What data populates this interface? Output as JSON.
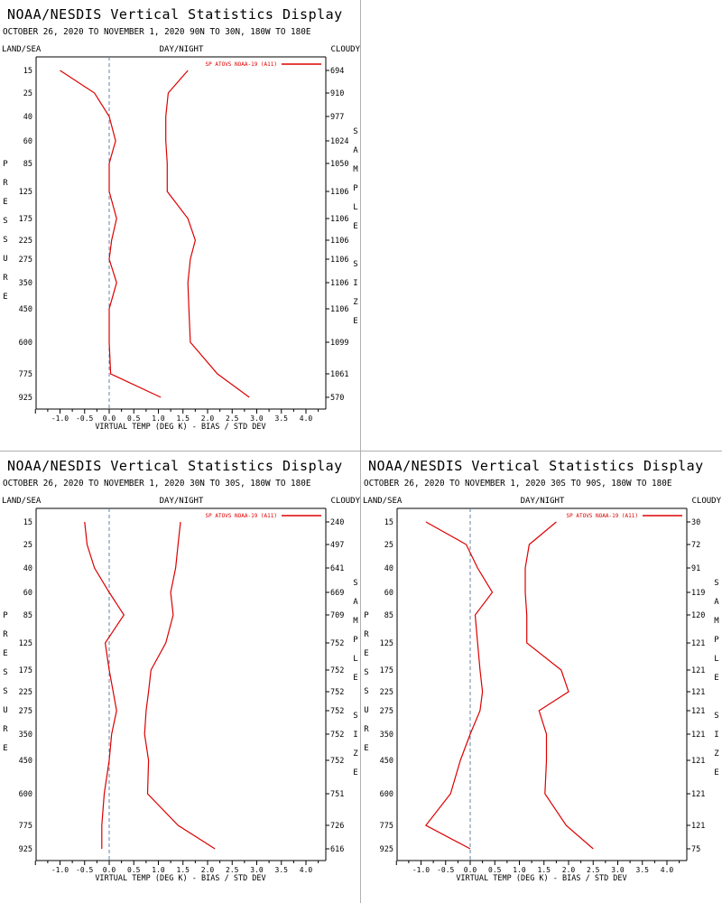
{
  "colors": {
    "series": "#dd0000",
    "zero_line": "#6680aa",
    "axis": "#000000",
    "background": "#ffffff"
  },
  "chart_data": [
    {
      "type": "line",
      "title": "NOAA/NESDIS Vertical Statistics Display",
      "subtitle": "OCTOBER 26, 2020 TO NOVEMBER 1, 2020 90N TO 30N, 180W TO 180E",
      "header_left": "LAND/SEA",
      "header_center": "DAY/NIGHT",
      "header_right": "CLOUDY",
      "xlabel": "VIRTUAL TEMP (DEG K) - BIAS / STD DEV",
      "ylabel": "PRESSURE",
      "y2label": "SAMPLE SIZE",
      "legend": "SP ATOVS NOAA-19 (A11)",
      "legend_position": "top-right",
      "x_ticks": [
        "-1.0",
        "-0.5",
        "0.0",
        "0.5",
        "1.0",
        "1.5",
        "2.0",
        "2.5",
        "3.0",
        "3.5",
        "4.0"
      ],
      "xlim": [
        -1.5,
        4.4
      ],
      "pressure_levels": [
        "15",
        "25",
        "40",
        "60",
        "85",
        "125",
        "175",
        "225",
        "275",
        "350",
        "450",
        "600",
        "775",
        "925"
      ],
      "sample_size": [
        "694",
        "910",
        "977",
        "1024",
        "1050",
        "1106",
        "1106",
        "1106",
        "1106",
        "1106",
        "1106",
        "1099",
        "1061",
        "570"
      ],
      "series": [
        {
          "name": "BIAS",
          "values": [
            -1.0,
            -0.3,
            0.0,
            0.13,
            0.0,
            0.0,
            0.15,
            0.05,
            0.0,
            0.15,
            0.0,
            0.0,
            0.03,
            1.05
          ]
        },
        {
          "name": "STD DEV",
          "values": [
            1.6,
            1.2,
            1.15,
            1.15,
            1.18,
            1.18,
            1.6,
            1.75,
            1.65,
            1.6,
            1.62,
            1.65,
            2.2,
            2.85
          ]
        }
      ],
      "grid": false
    },
    {
      "type": "line",
      "title": "NOAA/NESDIS Vertical Statistics Display",
      "subtitle": "OCTOBER 26, 2020 TO NOVEMBER 1, 2020 30N TO 30S, 180W TO 180E",
      "header_left": "LAND/SEA",
      "header_center": "DAY/NIGHT",
      "header_right": "CLOUDY",
      "xlabel": "VIRTUAL TEMP (DEG K) - BIAS / STD DEV",
      "ylabel": "PRESSURE",
      "y2label": "SAMPLE SIZE",
      "legend": "SP ATOVS NOAA-19 (A11)",
      "legend_position": "top-right",
      "x_ticks": [
        "-1.0",
        "-0.5",
        "0.0",
        "0.5",
        "1.0",
        "1.5",
        "2.0",
        "2.5",
        "3.0",
        "3.5",
        "4.0"
      ],
      "xlim": [
        -1.5,
        4.4
      ],
      "pressure_levels": [
        "15",
        "25",
        "40",
        "60",
        "85",
        "125",
        "175",
        "225",
        "275",
        "350",
        "450",
        "600",
        "775",
        "925"
      ],
      "sample_size": [
        "240",
        "497",
        "641",
        "669",
        "709",
        "752",
        "752",
        "752",
        "752",
        "752",
        "752",
        "751",
        "726",
        "616"
      ],
      "series": [
        {
          "name": "BIAS",
          "values": [
            -0.5,
            -0.45,
            -0.3,
            0.0,
            0.3,
            -0.08,
            0.0,
            0.08,
            0.15,
            0.05,
            0.0,
            -0.1,
            -0.15,
            -0.15
          ]
        },
        {
          "name": "STD DEV",
          "values": [
            1.45,
            1.4,
            1.35,
            1.25,
            1.3,
            1.15,
            0.85,
            0.8,
            0.75,
            0.72,
            0.8,
            0.78,
            1.4,
            2.15
          ]
        }
      ],
      "grid": false
    },
    {
      "type": "line",
      "title": "NOAA/NESDIS Vertical Statistics Display",
      "subtitle": "OCTOBER 26, 2020 TO NOVEMBER 1, 2020 30S TO 90S, 180W TO 180E",
      "header_left": "LAND/SEA",
      "header_center": "DAY/NIGHT",
      "header_right": "CLOUDY",
      "xlabel": "VIRTUAL TEMP (DEG K) - BIAS / STD DEV",
      "ylabel": "PRESSURE",
      "y2label": "SAMPLE SIZE",
      "legend": "SP ATOVS NOAA-19 (A11)",
      "legend_position": "top-right",
      "x_ticks": [
        "-1.0",
        "-0.5",
        "0.0",
        "0.5",
        "1.0",
        "1.5",
        "2.0",
        "2.5",
        "3.0",
        "3.5",
        "4.0"
      ],
      "xlim": [
        -1.5,
        4.4
      ],
      "pressure_levels": [
        "15",
        "25",
        "40",
        "60",
        "85",
        "125",
        "175",
        "225",
        "275",
        "350",
        "450",
        "600",
        "775",
        "925"
      ],
      "sample_size": [
        "30",
        "72",
        "91",
        "119",
        "120",
        "121",
        "121",
        "121",
        "121",
        "121",
        "121",
        "121",
        "121",
        "75"
      ],
      "series": [
        {
          "name": "BIAS",
          "values": [
            -0.9,
            -0.08,
            0.15,
            0.45,
            0.1,
            0.15,
            0.2,
            0.25,
            0.2,
            0.0,
            -0.2,
            -0.4,
            -0.9,
            0.0
          ]
        },
        {
          "name": "STD DEV",
          "values": [
            1.75,
            1.2,
            1.12,
            1.12,
            1.15,
            1.15,
            1.85,
            2.0,
            1.4,
            1.55,
            1.55,
            1.52,
            1.95,
            2.5
          ]
        }
      ],
      "grid": false
    }
  ]
}
